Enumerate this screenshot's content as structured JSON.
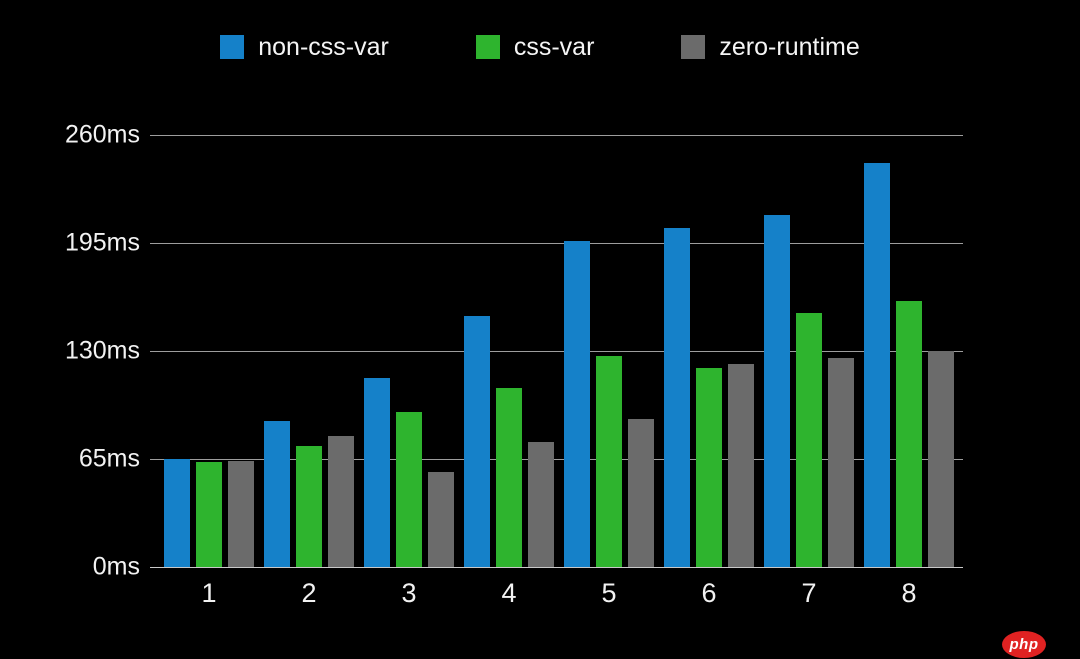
{
  "chart_data": {
    "type": "bar",
    "title": "",
    "xlabel": "",
    "ylabel": "",
    "unit": "ms",
    "categories": [
      "1",
      "2",
      "3",
      "4",
      "5",
      "6",
      "7",
      "8"
    ],
    "series": [
      {
        "name": "non-css-var",
        "color": "#1581c9",
        "values": [
          65,
          88,
          114,
          151,
          196,
          204,
          212,
          243
        ]
      },
      {
        "name": "css-var",
        "color": "#2eb42e",
        "values": [
          63,
          73,
          93,
          108,
          127,
          120,
          153,
          160
        ]
      },
      {
        "name": "zero-runtime",
        "color": "#6b6b6b",
        "values": [
          64,
          79,
          57,
          75,
          89,
          122,
          126,
          130
        ]
      }
    ],
    "ylim": [
      0,
      260
    ],
    "yticks": [
      0,
      65,
      130,
      195,
      260
    ],
    "ytick_labels": [
      "0ms",
      "65ms",
      "130ms",
      "195ms",
      "260ms"
    ],
    "grid": true,
    "legend_position": "top"
  },
  "style": {
    "background": "#000000",
    "grid_color": "#9d9d9d",
    "text_color": "#f2f2f2"
  },
  "watermark": {
    "label": "php",
    "color": "#e02222"
  }
}
